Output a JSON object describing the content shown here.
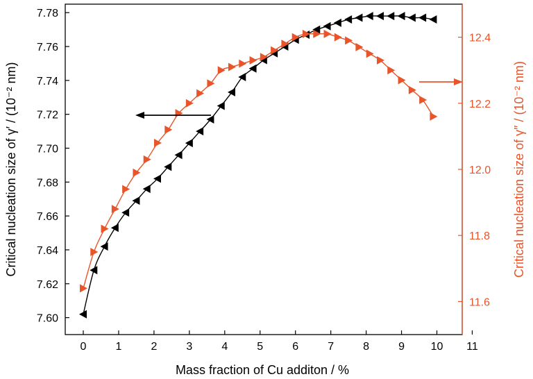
{
  "chart_data": {
    "type": "line",
    "xlabel": "Mass fraction of Cu additon / %",
    "ylabel_left": "Critical nucleation size of γ′ / (10⁻² nm)",
    "ylabel_right": "Critical nucleation size of γ″ / (10⁻² nm)",
    "xlim": [
      -0.5,
      11
    ],
    "ylim_left": [
      7.59,
      7.785
    ],
    "ylim_right": [
      11.5,
      12.5
    ],
    "x_ticks": [
      "0",
      "1",
      "2",
      "3",
      "4",
      "5",
      "6",
      "7",
      "8",
      "9",
      "10",
      "11"
    ],
    "y_left_ticks": [
      "7.60",
      "7.62",
      "7.64",
      "7.66",
      "7.68",
      "7.70",
      "7.72",
      "7.74",
      "7.76",
      "7.78"
    ],
    "y_right_ticks": [
      "11.6",
      "11.8",
      "12.0",
      "12.2",
      "12.4"
    ],
    "colors": {
      "gamma_prime": "#000000",
      "gamma_double_prime": "#e8552a"
    },
    "series": [
      {
        "axis": "left",
        "marker": "triangle-left",
        "color": "#000000",
        "x": [
          0,
          0.3,
          0.6,
          0.9,
          1.2,
          1.5,
          1.8,
          2.1,
          2.4,
          2.7,
          3.0,
          3.3,
          3.6,
          3.9,
          4.2,
          4.5,
          4.8,
          5.1,
          5.4,
          5.7,
          6.0,
          6.3,
          6.6,
          6.9,
          7.2,
          7.5,
          7.8,
          8.1,
          8.4,
          8.7,
          9.0,
          9.3,
          9.6,
          9.9
        ],
        "y": [
          7.602,
          7.628,
          7.642,
          7.653,
          7.662,
          7.669,
          7.676,
          7.682,
          7.689,
          7.696,
          7.703,
          7.71,
          7.717,
          7.725,
          7.733,
          7.742,
          7.747,
          7.752,
          7.756,
          7.76,
          7.764,
          7.767,
          7.77,
          7.772,
          7.774,
          7.776,
          7.777,
          7.778,
          7.778,
          7.778,
          7.778,
          7.777,
          7.777,
          7.776
        ]
      },
      {
        "axis": "right",
        "marker": "triangle-right",
        "color": "#e8552a",
        "x": [
          0,
          0.3,
          0.6,
          0.9,
          1.2,
          1.5,
          1.8,
          2.1,
          2.4,
          2.7,
          3.0,
          3.3,
          3.6,
          3.9,
          4.2,
          4.5,
          4.8,
          5.1,
          5.4,
          5.7,
          6.0,
          6.3,
          6.6,
          6.9,
          7.2,
          7.5,
          7.8,
          8.1,
          8.4,
          8.7,
          9.0,
          9.3,
          9.6,
          9.9
        ],
        "y": [
          11.64,
          11.75,
          11.82,
          11.88,
          11.94,
          11.99,
          12.03,
          12.08,
          12.12,
          12.17,
          12.2,
          12.23,
          12.26,
          12.3,
          12.31,
          12.32,
          12.33,
          12.34,
          12.36,
          12.38,
          12.4,
          12.41,
          12.41,
          12.41,
          12.4,
          12.39,
          12.37,
          12.35,
          12.33,
          12.3,
          12.27,
          12.24,
          12.21,
          12.16
        ]
      }
    ],
    "annotations": [
      {
        "type": "arrow",
        "direction": "left",
        "points_to": "left axis",
        "color": "#000000"
      },
      {
        "type": "arrow",
        "direction": "right",
        "points_to": "right axis",
        "color": "#e8552a"
      }
    ]
  }
}
